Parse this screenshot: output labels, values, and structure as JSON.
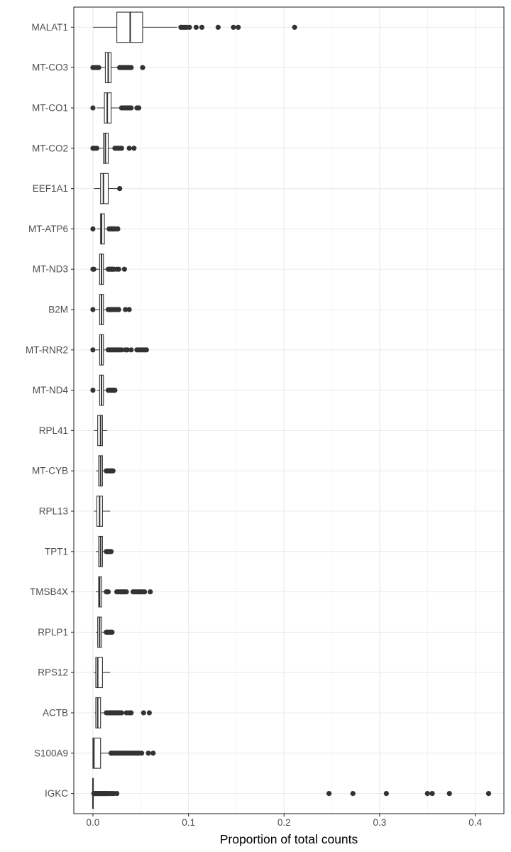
{
  "chart_data": {
    "type": "boxplot",
    "orientation": "horizontal",
    "title": "",
    "xlabel": "Proportion of total counts",
    "ylabel": "",
    "xlim": [
      -0.02,
      0.43
    ],
    "x_ticks": [
      0.0,
      0.1,
      0.2,
      0.3,
      0.4
    ],
    "x_tick_labels": [
      "0.0",
      "0.1",
      "0.2",
      "0.3",
      "0.4"
    ],
    "grid": true,
    "colors": {
      "box_fill": "#ffffff",
      "box_stroke": "#333333",
      "point": "#333333",
      "grid": "#ebebeb",
      "panel_border": "#333333"
    },
    "categories": [
      "MALAT1",
      "MT-CO3",
      "MT-CO1",
      "MT-CO2",
      "EEF1A1",
      "MT-ATP6",
      "MT-ND3",
      "B2M",
      "MT-RNR2",
      "MT-ND4",
      "RPL41",
      "MT-CYB",
      "RPL13",
      "TPT1",
      "TMSB4X",
      "RPLP1",
      "RPS12",
      "ACTB",
      "S100A9",
      "IGKC"
    ],
    "boxes": [
      {
        "label": "MALAT1",
        "whisker_low": 0.0,
        "q1": 0.025,
        "median": 0.039,
        "q3": 0.052,
        "whisker_high": 0.088,
        "outliers": [
          0.092,
          0.094,
          0.096,
          0.098,
          0.101,
          0.108,
          0.114,
          0.131,
          0.147,
          0.152,
          0.211
        ]
      },
      {
        "label": "MT-CO3",
        "whisker_low": 0.007,
        "q1": 0.013,
        "median": 0.016,
        "q3": 0.019,
        "whisker_high": 0.027,
        "outliers": [
          0.0,
          0.002,
          0.004,
          0.006,
          0.028,
          0.03,
          0.032,
          0.034,
          0.036,
          0.038,
          0.04,
          0.052
        ]
      },
      {
        "label": "MT-CO1",
        "whisker_low": 0.004,
        "q1": 0.012,
        "median": 0.015,
        "q3": 0.019,
        "whisker_high": 0.028,
        "outliers": [
          0.0,
          0.03,
          0.032,
          0.034,
          0.036,
          0.038,
          0.04,
          0.046,
          0.048
        ]
      },
      {
        "label": "MT-CO2",
        "whisker_low": 0.006,
        "q1": 0.011,
        "median": 0.013,
        "q3": 0.016,
        "whisker_high": 0.022,
        "outliers": [
          0.0,
          0.001,
          0.002,
          0.004,
          0.023,
          0.024,
          0.026,
          0.028,
          0.03,
          0.038,
          0.043
        ]
      },
      {
        "label": "EEF1A1",
        "whisker_low": 0.001,
        "q1": 0.008,
        "median": 0.011,
        "q3": 0.016,
        "whisker_high": 0.026,
        "outliers": [
          0.028
        ]
      },
      {
        "label": "MT-ATP6",
        "whisker_low": 0.004,
        "q1": 0.008,
        "median": 0.009,
        "q3": 0.012,
        "whisker_high": 0.016,
        "outliers": [
          0.0,
          0.017,
          0.018,
          0.019,
          0.02,
          0.021,
          0.022,
          0.024,
          0.026
        ]
      },
      {
        "label": "MT-ND3",
        "whisker_low": 0.004,
        "q1": 0.007,
        "median": 0.009,
        "q3": 0.011,
        "whisker_high": 0.015,
        "outliers": [
          0.0,
          0.001,
          0.016,
          0.017,
          0.018,
          0.019,
          0.02,
          0.021,
          0.022,
          0.025,
          0.027,
          0.033
        ]
      },
      {
        "label": "B2M",
        "whisker_low": 0.003,
        "q1": 0.007,
        "median": 0.009,
        "q3": 0.011,
        "whisker_high": 0.015,
        "outliers": [
          0.0,
          0.016,
          0.017,
          0.018,
          0.019,
          0.02,
          0.022,
          0.024,
          0.026,
          0.027,
          0.034,
          0.038
        ]
      },
      {
        "label": "MT-RNR2",
        "whisker_low": 0.003,
        "q1": 0.007,
        "median": 0.009,
        "q3": 0.011,
        "whisker_high": 0.015,
        "outliers": [
          0.0,
          0.016,
          0.018,
          0.02,
          0.022,
          0.024,
          0.026,
          0.028,
          0.03,
          0.034,
          0.036,
          0.04,
          0.046,
          0.048,
          0.05,
          0.052,
          0.054,
          0.056
        ]
      },
      {
        "label": "MT-ND4",
        "whisker_low": 0.004,
        "q1": 0.007,
        "median": 0.009,
        "q3": 0.011,
        "whisker_high": 0.015,
        "outliers": [
          0.0,
          0.016,
          0.017,
          0.018,
          0.019,
          0.02,
          0.021,
          0.022,
          0.023
        ]
      },
      {
        "label": "RPL41",
        "whisker_low": 0.001,
        "q1": 0.005,
        "median": 0.008,
        "q3": 0.01,
        "whisker_high": 0.015,
        "outliers": []
      },
      {
        "label": "MT-CYB",
        "whisker_low": 0.003,
        "q1": 0.006,
        "median": 0.008,
        "q3": 0.01,
        "whisker_high": 0.013,
        "outliers": [
          0.014,
          0.015,
          0.016,
          0.017,
          0.018,
          0.019,
          0.02,
          0.021
        ]
      },
      {
        "label": "RPL13",
        "whisker_low": 0.001,
        "q1": 0.004,
        "median": 0.007,
        "q3": 0.01,
        "whisker_high": 0.018,
        "outliers": []
      },
      {
        "label": "TPT1",
        "whisker_low": 0.003,
        "q1": 0.006,
        "median": 0.008,
        "q3": 0.01,
        "whisker_high": 0.013,
        "outliers": [
          0.014,
          0.015,
          0.016,
          0.017,
          0.018,
          0.019
        ]
      },
      {
        "label": "TMSB4X",
        "whisker_low": 0.003,
        "q1": 0.006,
        "median": 0.007,
        "q3": 0.009,
        "whisker_high": 0.013,
        "outliers": [
          0.014,
          0.015,
          0.016,
          0.025,
          0.027,
          0.029,
          0.031,
          0.033,
          0.035,
          0.042,
          0.044,
          0.046,
          0.048,
          0.05,
          0.052,
          0.054,
          0.06
        ]
      },
      {
        "label": "RPLP1",
        "whisker_low": 0.003,
        "q1": 0.005,
        "median": 0.007,
        "q3": 0.009,
        "whisker_high": 0.013,
        "outliers": [
          0.014,
          0.015,
          0.016,
          0.017,
          0.018,
          0.019,
          0.02
        ]
      },
      {
        "label": "RPS12",
        "whisker_low": 0.001,
        "q1": 0.003,
        "median": 0.005,
        "q3": 0.01,
        "whisker_high": 0.018,
        "outliers": []
      },
      {
        "label": "ACTB",
        "whisker_low": 0.002,
        "q1": 0.003,
        "median": 0.005,
        "q3": 0.008,
        "whisker_high": 0.013,
        "outliers": [
          0.014,
          0.016,
          0.018,
          0.02,
          0.022,
          0.024,
          0.026,
          0.028,
          0.03,
          0.035,
          0.038,
          0.04,
          0.053,
          0.059
        ]
      },
      {
        "label": "S100A9",
        "whisker_low": 0.0,
        "q1": 0.0,
        "median": 0.001,
        "q3": 0.008,
        "whisker_high": 0.018,
        "outliers": [
          0.019,
          0.02,
          0.022,
          0.024,
          0.026,
          0.028,
          0.03,
          0.032,
          0.034,
          0.036,
          0.038,
          0.04,
          0.042,
          0.044,
          0.046,
          0.048,
          0.051,
          0.058,
          0.063
        ]
      },
      {
        "label": "IGKC",
        "whisker_low": 0.0,
        "q1": 0.0,
        "median": 0.0,
        "q3": 0.0,
        "whisker_high": 0.0,
        "outliers": [
          0.001,
          0.002,
          0.003,
          0.004,
          0.005,
          0.006,
          0.007,
          0.008,
          0.009,
          0.01,
          0.011,
          0.012,
          0.013,
          0.014,
          0.015,
          0.016,
          0.018,
          0.02,
          0.022,
          0.025,
          0.247,
          0.272,
          0.307,
          0.35,
          0.355,
          0.373,
          0.414
        ]
      }
    ]
  }
}
